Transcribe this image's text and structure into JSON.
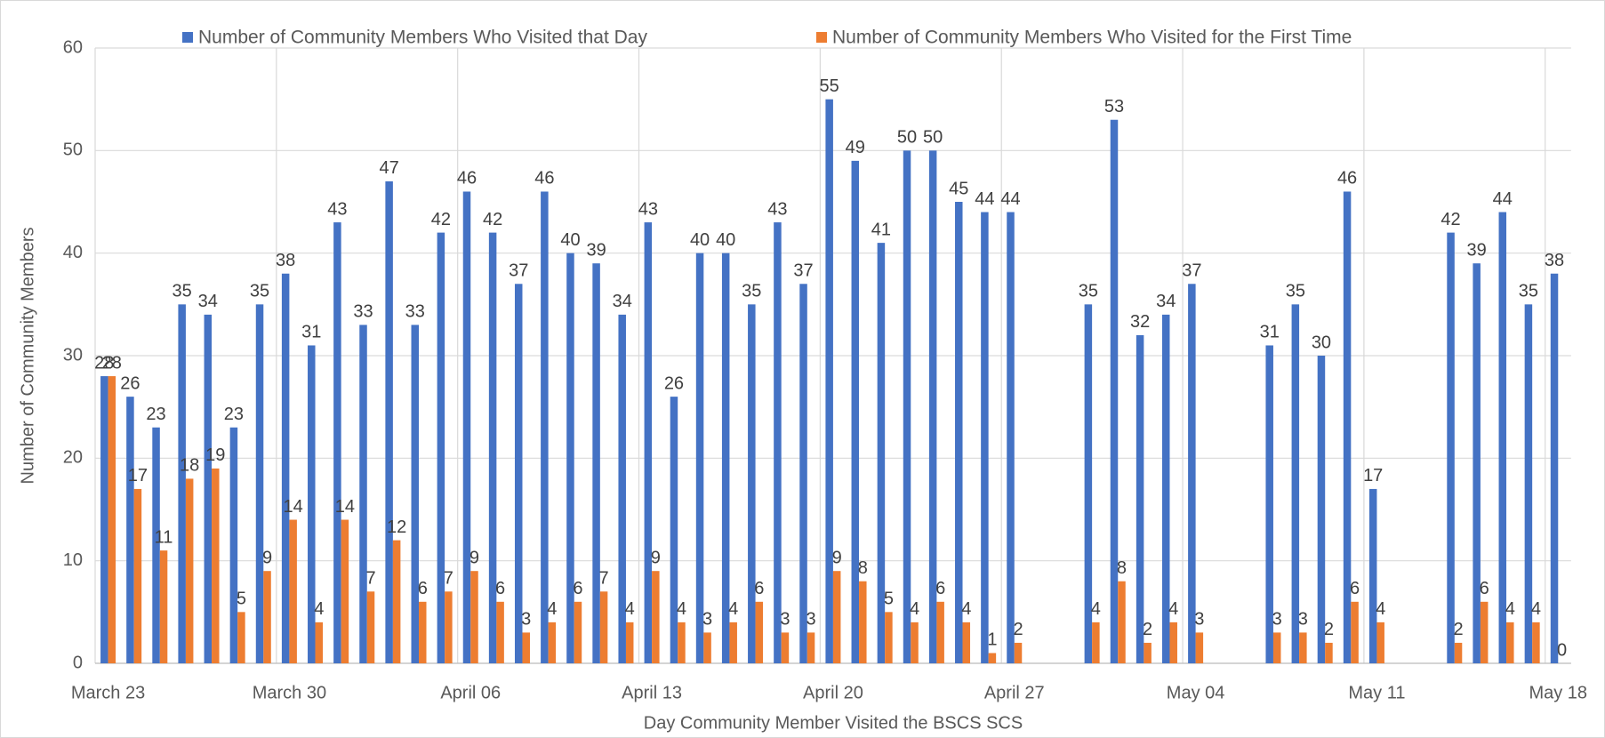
{
  "chart_data": {
    "type": "bar",
    "x_label": "Day Community Member Visited the BSCS SCS",
    "y_label": "Number of Community Members",
    "categories": [
      "March 23",
      null,
      null,
      null,
      null,
      null,
      null,
      "March 30",
      null,
      null,
      null,
      null,
      null,
      null,
      "April 06",
      null,
      null,
      null,
      null,
      null,
      null,
      "April 13",
      null,
      null,
      null,
      null,
      null,
      null,
      "April 20",
      null,
      null,
      null,
      null,
      null,
      null,
      "April 27",
      null,
      null,
      null,
      null,
      null,
      null,
      "May 04",
      null,
      null,
      null,
      null,
      null,
      null,
      "May 11",
      null,
      null,
      null,
      null,
      null,
      null,
      "May 18"
    ],
    "series": [
      {
        "name": "Number of Community Members Who Visited that Day",
        "color": "#4472c4",
        "values": [
          28,
          26,
          23,
          35,
          34,
          23,
          35,
          38,
          31,
          43,
          33,
          47,
          33,
          42,
          46,
          42,
          37,
          46,
          40,
          39,
          34,
          43,
          26,
          40,
          40,
          35,
          43,
          37,
          55,
          49,
          41,
          50,
          50,
          45,
          44,
          44,
          null,
          null,
          35,
          53,
          32,
          34,
          37,
          null,
          null,
          31,
          35,
          30,
          46,
          17,
          null,
          null,
          42,
          39,
          44,
          35,
          38
        ]
      },
      {
        "name": "Number of Community Members Who Visited for the First Time",
        "color": "#ed7d31",
        "values": [
          28,
          17,
          11,
          18,
          19,
          5,
          9,
          14,
          4,
          14,
          7,
          12,
          6,
          7,
          9,
          6,
          3,
          4,
          6,
          7,
          4,
          9,
          4,
          3,
          4,
          6,
          3,
          3,
          9,
          8,
          5,
          4,
          6,
          4,
          1,
          2,
          null,
          null,
          4,
          8,
          2,
          4,
          3,
          null,
          null,
          3,
          3,
          2,
          6,
          4,
          null,
          null,
          2,
          6,
          4,
          4,
          0
        ]
      }
    ],
    "ylim": [
      0,
      60
    ],
    "yticks": [
      0,
      10,
      20,
      30,
      40,
      50,
      60
    ],
    "grid": true,
    "legend": "top"
  }
}
